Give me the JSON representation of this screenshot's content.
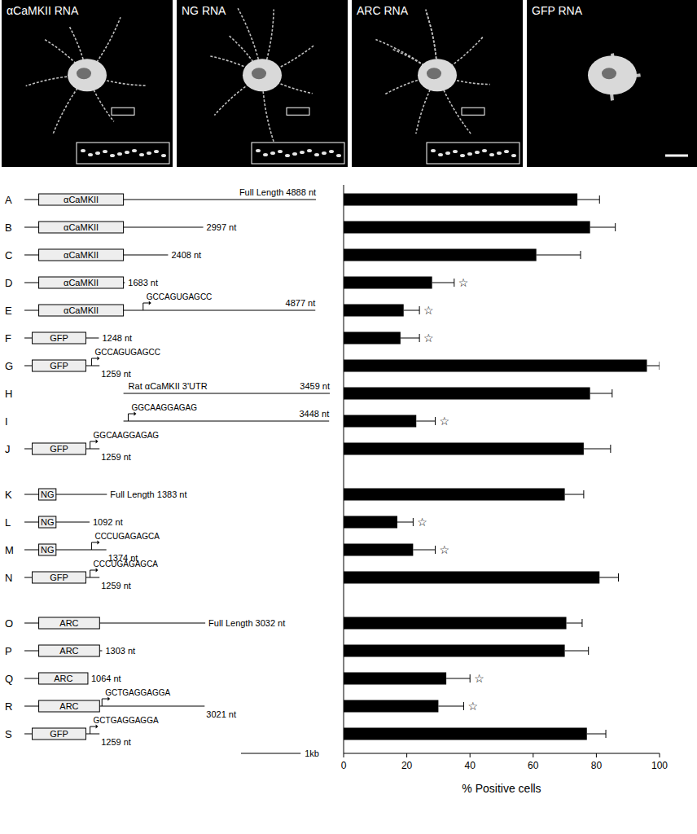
{
  "image_labels": [
    "αCaMKII RNA",
    "NG RNA",
    "ARC RNA",
    "GFP RNA"
  ],
  "scale_bar": {
    "value": 1000,
    "label": "1kb"
  },
  "constructs": [
    [
      {
        "cds_label": "αCaMKII",
        "cds": [
          240,
          1660
        ],
        "length": 4888,
        "length_label": "Full Length 4888 nt"
      },
      {
        "cds_label": "αCaMKII",
        "cds": [
          240,
          1660
        ],
        "length": 2997,
        "length_label": "2997 nt"
      },
      {
        "cds_label": "αCaMKII",
        "cds": [
          240,
          1660
        ],
        "length": 2408,
        "length_label": "2408 nt"
      },
      {
        "cds_label": "αCaMKII",
        "cds": [
          240,
          1660
        ],
        "length": 1683,
        "length_label": "1683 nt"
      },
      {
        "cds_label": "αCaMKII",
        "cds": [
          240,
          1660
        ],
        "length": 4877,
        "length_label": "4877 nt",
        "insert": "GCCAGUGAGCC",
        "insert_at": 1990
      },
      {
        "cds_label": "GFP",
        "cds": [
          130,
          1030
        ],
        "length": 1248,
        "length_label": "1248 nt"
      },
      {
        "cds_label": "GFP",
        "cds": [
          130,
          1030
        ],
        "length": 1259,
        "length_label": "1259 nt",
        "insert": "GCCAGUGAGCC",
        "insert_at": 1125
      },
      {
        "name": "Rat αCaMKII 3'UTR",
        "start": 1660,
        "length": 3459,
        "length_label": "3459 nt"
      },
      {
        "start": 1660,
        "length": 3448,
        "length_label": "3448 nt",
        "insert": "GGCAAGGAGAG",
        "insert_at": 1740
      },
      {
        "cds_label": "GFP",
        "cds": [
          130,
          1030
        ],
        "length": 1259,
        "length_label": "1259 nt",
        "insert": "GGCAAGGAGAG",
        "insert_at": 1100
      }
    ],
    [
      {
        "cds_label": "NG",
        "cds": [
          240,
          530
        ],
        "length": 1383,
        "length_label": "Full Length 1383 nt"
      },
      {
        "cds_label": "NG",
        "cds": [
          240,
          530
        ],
        "length": 1092,
        "length_label": "1092 nt"
      },
      {
        "cds_label": "NG",
        "cds": [
          240,
          530
        ],
        "length": 1374,
        "length_label": "1374 nt",
        "insert": "CCCUGAGAGCA",
        "insert_at": 1125
      },
      {
        "cds_label": "GFP",
        "cds": [
          130,
          1030
        ],
        "length": 1259,
        "length_label": "1259 nt",
        "insert": "CCCUGAGAGCA",
        "insert_at": 1100
      }
    ],
    [
      {
        "cds_label": "ARC",
        "cds": [
          240,
          1260
        ],
        "length": 3032,
        "length_label": "Full Length 3032 nt"
      },
      {
        "cds_label": "ARC",
        "cds": [
          240,
          1260
        ],
        "length": 1303,
        "length_label": "1303 nt"
      },
      {
        "cds_label": "ARC",
        "cds": [
          240,
          1064
        ],
        "length": 1064,
        "length_label": "1064 nt"
      },
      {
        "cds_label": "ARC",
        "cds": [
          240,
          1260
        ],
        "length": 3021,
        "length_label": "3021 nt",
        "insert": "GCTGAGGAGGA",
        "insert_at": 1300
      },
      {
        "cds_label": "GFP",
        "cds": [
          130,
          1030
        ],
        "length": 1259,
        "length_label": "1259 nt",
        "insert": "GCTGAGGAGGA",
        "insert_at": 1100
      }
    ]
  ],
  "chart_data": {
    "type": "bar",
    "orientation": "horizontal",
    "categories": [
      "A",
      "B",
      "C",
      "D",
      "E",
      "F",
      "G",
      "H",
      "I",
      "J",
      "K",
      "L",
      "M",
      "N",
      "O",
      "P",
      "Q",
      "R",
      "S"
    ],
    "values": [
      74,
      78,
      61,
      28,
      19,
      18,
      96,
      78,
      23,
      76,
      70,
      17,
      22,
      81,
      70.5,
      70,
      32.5,
      30,
      77
    ],
    "errors": [
      7,
      8,
      14,
      7,
      5,
      6,
      4,
      7,
      6,
      8.5,
      6,
      5,
      7,
      6,
      5,
      7.5,
      7.5,
      8,
      6
    ],
    "significant": [
      false,
      false,
      false,
      true,
      true,
      true,
      false,
      false,
      true,
      false,
      false,
      true,
      true,
      false,
      false,
      false,
      true,
      true,
      false
    ],
    "significance_symbol": "☆",
    "color": "#000000",
    "xlim": [
      0,
      100
    ],
    "xticks": [
      0,
      20,
      40,
      60,
      80,
      100
    ],
    "x_label": "% Positive cells",
    "grid": false
  }
}
